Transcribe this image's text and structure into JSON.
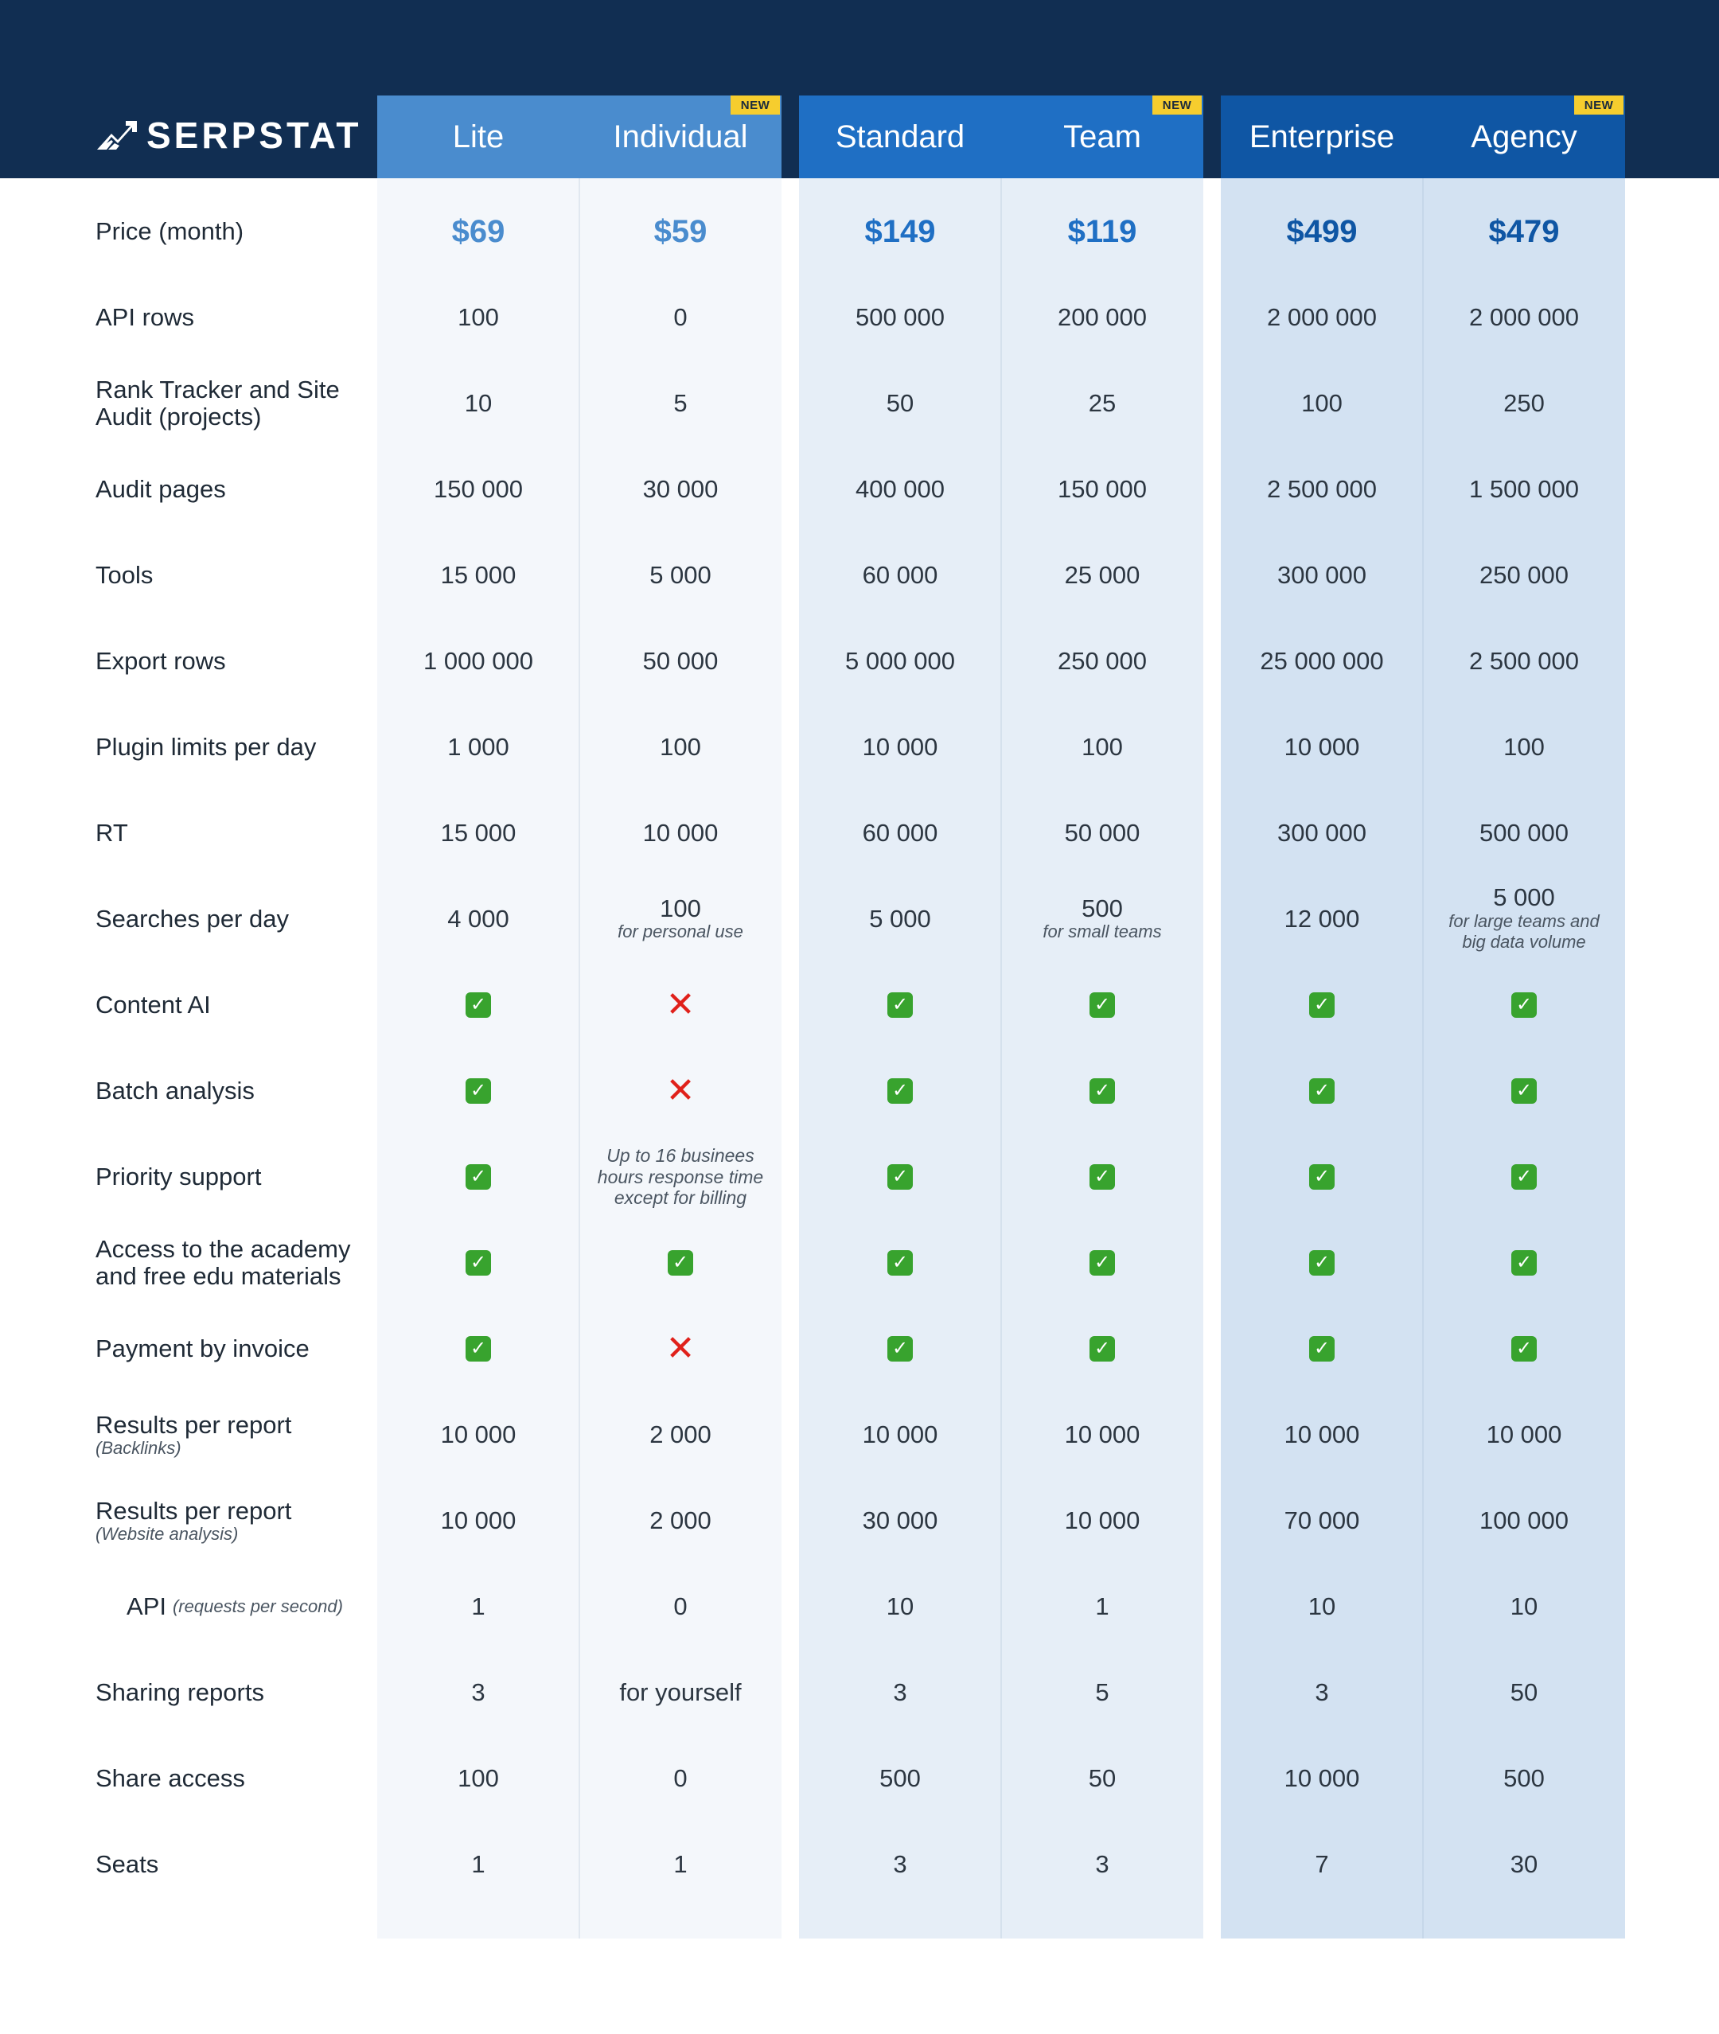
{
  "brand": {
    "name": "SERPSTAT",
    "logo_icon": "serpstat-logo-icon"
  },
  "badge_text": "NEW",
  "colors": {
    "header_bg": "#112e52",
    "group1_header": "#4a8cce",
    "group2_header": "#1f6fc4",
    "group3_header": "#0f56a4",
    "group1_bg": "#f4f7fb",
    "group2_bg": "#e6eef7",
    "group3_bg": "#d3e2f2",
    "badge": "#f6cd2e",
    "check": "#38a32e",
    "cross": "#e0211b"
  },
  "plans": [
    {
      "name": "Lite",
      "badge": false,
      "price_color": "#4a8cce"
    },
    {
      "name": "Individual",
      "badge": true,
      "price_color": "#4a8cce"
    },
    {
      "name": "Standard",
      "badge": false,
      "price_color": "#1f6fc4"
    },
    {
      "name": "Team",
      "badge": true,
      "price_color": "#1f6fc4"
    },
    {
      "name": "Enterprise",
      "badge": false,
      "price_color": "#0f56a4"
    },
    {
      "name": "Agency",
      "badge": true,
      "price_color": "#0f56a4"
    }
  ],
  "rows": [
    {
      "label": "Price (month)",
      "type": "price",
      "values": [
        "$69",
        "$59",
        "$149",
        "$119",
        "$499",
        "$479"
      ]
    },
    {
      "label": "API rows",
      "values": [
        "100",
        "0",
        "500 000",
        "200 000",
        "2 000 000",
        "2 000 000"
      ]
    },
    {
      "label": "Rank Tracker and Site Audit (projects)",
      "values": [
        "10",
        "5",
        "50",
        "25",
        "100",
        "250"
      ]
    },
    {
      "label": "Audit pages",
      "values": [
        "150 000",
        "30 000",
        "400 000",
        "150 000",
        "2 500 000",
        "1 500 000"
      ]
    },
    {
      "label": "Tools",
      "values": [
        "15 000",
        "5 000",
        "60 000",
        "25 000",
        "300 000",
        "250 000"
      ]
    },
    {
      "label": "Export rows",
      "values": [
        "1 000 000",
        "50 000",
        "5 000 000",
        "250 000",
        "25 000 000",
        "2 500 000"
      ]
    },
    {
      "label": "Plugin limits per day",
      "values": [
        "1 000",
        "100",
        "10 000",
        "100",
        "10 000",
        "100"
      ]
    },
    {
      "label": "RT",
      "values": [
        "15 000",
        "10 000",
        "60 000",
        "50 000",
        "300 000",
        "500 000"
      ]
    },
    {
      "label": "Searches per day",
      "values": [
        {
          "value": "4 000"
        },
        {
          "value": "100",
          "note": "for personal use"
        },
        {
          "value": "5 000"
        },
        {
          "value": "500",
          "note": "for small teams"
        },
        {
          "value": "12 000"
        },
        {
          "value": "5 000",
          "note": "for large teams and big data volume"
        }
      ]
    },
    {
      "label": "Content AI",
      "values": [
        true,
        false,
        true,
        true,
        true,
        true
      ]
    },
    {
      "label": "Batch analysis",
      "values": [
        true,
        false,
        true,
        true,
        true,
        true
      ]
    },
    {
      "label": "Priority support",
      "values": [
        true,
        {
          "note": "Up to 16 businees hours response time except for billing"
        },
        true,
        true,
        true,
        true
      ]
    },
    {
      "label": "Access to the academy and free edu materials",
      "values": [
        true,
        true,
        true,
        true,
        true,
        true
      ]
    },
    {
      "label": "Payment by invoice",
      "values": [
        true,
        false,
        true,
        true,
        true,
        true
      ]
    },
    {
      "label": "Results per report",
      "sublabel": "(Backlinks)",
      "values": [
        "10 000",
        "2 000",
        "10 000",
        "10 000",
        "10 000",
        "10 000"
      ]
    },
    {
      "label": "Results per report",
      "sublabel": "(Website analysis)",
      "values": [
        "10 000",
        "2 000",
        "30 000",
        "10 000",
        "70 000",
        "100 000"
      ]
    },
    {
      "label": "API",
      "sublabel": "(requests per second)",
      "inline_sublabel": true,
      "values": [
        "1",
        "0",
        "10",
        "1",
        "10",
        "10"
      ]
    },
    {
      "label": "Sharing reports",
      "values": [
        "3",
        "for yourself",
        "3",
        "5",
        "3",
        "50"
      ]
    },
    {
      "label": "Share access",
      "values": [
        "100",
        "0",
        "500",
        "50",
        "10 000",
        "500"
      ]
    },
    {
      "label": "Seats",
      "values": [
        "1",
        "1",
        "3",
        "3",
        "7",
        "30"
      ]
    }
  ]
}
